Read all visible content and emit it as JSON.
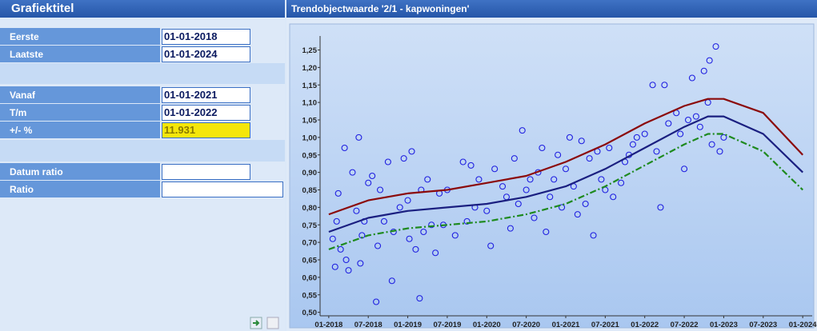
{
  "form": {
    "title": "Grafiektitel",
    "fields": [
      {
        "label": "Eerste",
        "value": "01-01-2018"
      },
      {
        "label": "Laatste",
        "value": "01-01-2024"
      },
      {
        "label": "Vanaf",
        "value": "01-01-2021"
      },
      {
        "label": "T/m",
        "value": "01-01-2022"
      },
      {
        "label": "+/- %",
        "value": "11.931"
      },
      {
        "label": "Datum ratio"
      },
      {
        "label": "Ratio"
      }
    ]
  },
  "chart_data": {
    "type": "scatter",
    "title": "Trendobjectwaarde '2/1 - kapwoningen'",
    "xlim": [
      2017.89,
      2024.12
    ],
    "ylim": [
      0.49,
      1.29
    ],
    "xticks": [
      {
        "value": 2018,
        "label": "01-2018"
      },
      {
        "value": 2018.5,
        "label": "07-2018"
      },
      {
        "value": 2019,
        "label": "01-2019"
      },
      {
        "value": 2019.5,
        "label": "07-2019"
      },
      {
        "value": 2020,
        "label": "01-2020"
      },
      {
        "value": 2020.5,
        "label": "07-2020"
      },
      {
        "value": 2021,
        "label": "01-2021"
      },
      {
        "value": 2021.5,
        "label": "07-2021"
      },
      {
        "value": 2022,
        "label": "01-2022"
      },
      {
        "value": 2022.5,
        "label": "07-2022"
      },
      {
        "value": 2023,
        "label": "01-2023"
      },
      {
        "value": 2023.5,
        "label": "07-2023"
      },
      {
        "value": 2024,
        "label": "01-2024"
      }
    ],
    "yticks": [
      {
        "value": 0.5,
        "label": "0,50"
      },
      {
        "value": 0.55,
        "label": "0,55"
      },
      {
        "value": 0.6,
        "label": "0,60"
      },
      {
        "value": 0.65,
        "label": "0,65"
      },
      {
        "value": 0.7,
        "label": "0,70"
      },
      {
        "value": 0.75,
        "label": "0,75"
      },
      {
        "value": 0.8,
        "label": "0,80"
      },
      {
        "value": 0.85,
        "label": "0,85"
      },
      {
        "value": 0.9,
        "label": "0,90"
      },
      {
        "value": 0.95,
        "label": "0,95"
      },
      {
        "value": 1.0,
        "label": "1,00"
      },
      {
        "value": 1.05,
        "label": "1,05"
      },
      {
        "value": 1.1,
        "label": "1,10"
      },
      {
        "value": 1.15,
        "label": "1,15"
      },
      {
        "value": 1.2,
        "label": "1,20"
      },
      {
        "value": 1.25,
        "label": "1,25"
      }
    ],
    "series": [
      {
        "type": "scatter",
        "color": "#1f1fe0",
        "x": [
          2018.05,
          2018.08,
          2018.1,
          2018.12,
          2018.15,
          2018.2,
          2018.22,
          2018.25,
          2018.3,
          2018.35,
          2018.38,
          2018.4,
          2018.42,
          2018.45,
          2018.5,
          2018.55,
          2018.6,
          2018.62,
          2018.65,
          2018.7,
          2018.75,
          2018.8,
          2018.82,
          2018.9,
          2018.95,
          2019.0,
          2019.02,
          2019.05,
          2019.1,
          2019.15,
          2019.17,
          2019.2,
          2019.25,
          2019.3,
          2019.35,
          2019.4,
          2019.45,
          2019.5,
          2019.6,
          2019.7,
          2019.75,
          2019.8,
          2019.85,
          2019.9,
          2020.0,
          2020.05,
          2020.1,
          2020.2,
          2020.25,
          2020.3,
          2020.35,
          2020.4,
          2020.45,
          2020.5,
          2020.55,
          2020.6,
          2020.65,
          2020.7,
          2020.75,
          2020.8,
          2020.85,
          2020.9,
          2020.95,
          2021.0,
          2021.05,
          2021.1,
          2021.15,
          2021.2,
          2021.25,
          2021.3,
          2021.35,
          2021.4,
          2021.45,
          2021.5,
          2021.55,
          2021.6,
          2021.7,
          2021.75,
          2021.8,
          2021.85,
          2021.9,
          2022.0,
          2022.1,
          2022.15,
          2022.2,
          2022.25,
          2022.3,
          2022.4,
          2022.45,
          2022.5,
          2022.55,
          2022.6,
          2022.65,
          2022.7,
          2022.75,
          2022.8,
          2022.82,
          2022.85,
          2022.9,
          2022.95,
          2023.0
        ],
        "values": [
          0.71,
          0.63,
          0.76,
          0.84,
          0.68,
          0.97,
          0.65,
          0.62,
          0.9,
          0.79,
          1.0,
          0.64,
          0.72,
          0.76,
          0.87,
          0.89,
          0.53,
          0.69,
          0.85,
          0.76,
          0.93,
          0.59,
          0.73,
          0.8,
          0.94,
          0.82,
          0.71,
          0.96,
          0.68,
          0.54,
          0.85,
          0.73,
          0.88,
          0.75,
          0.67,
          0.84,
          0.75,
          0.85,
          0.72,
          0.93,
          0.76,
          0.92,
          0.8,
          0.88,
          0.79,
          0.69,
          0.91,
          0.86,
          0.83,
          0.74,
          0.94,
          0.81,
          1.02,
          0.85,
          0.88,
          0.77,
          0.9,
          0.97,
          0.73,
          0.83,
          0.88,
          0.95,
          0.8,
          0.91,
          1.0,
          0.86,
          0.78,
          0.99,
          0.81,
          0.94,
          0.72,
          0.96,
          0.88,
          0.85,
          0.97,
          0.83,
          0.87,
          0.93,
          0.95,
          0.98,
          1.0,
          1.01,
          1.15,
          0.96,
          0.8,
          1.15,
          1.04,
          1.07,
          1.01,
          0.91,
          1.05,
          1.17,
          1.06,
          1.03,
          1.19,
          1.1,
          1.22,
          0.98,
          1.26,
          0.96,
          1.0
        ]
      },
      {
        "type": "line",
        "color": "#8b0a0a",
        "x": [
          2018,
          2018.5,
          2019,
          2019.5,
          2020,
          2020.5,
          2021,
          2021.5,
          2022,
          2022.5,
          2022.8,
          2023,
          2023.5,
          2024
        ],
        "values": [
          0.78,
          0.82,
          0.84,
          0.85,
          0.87,
          0.89,
          0.93,
          0.98,
          1.04,
          1.09,
          1.11,
          1.11,
          1.07,
          0.95
        ]
      },
      {
        "type": "line",
        "color": "#1a1f80",
        "x": [
          2018,
          2018.5,
          2019,
          2019.5,
          2020,
          2020.5,
          2021,
          2021.5,
          2022,
          2022.5,
          2022.8,
          2023,
          2023.5,
          2024
        ],
        "values": [
          0.73,
          0.77,
          0.79,
          0.8,
          0.81,
          0.83,
          0.86,
          0.91,
          0.97,
          1.03,
          1.06,
          1.06,
          1.01,
          0.9
        ]
      },
      {
        "type": "line",
        "color": "#1e8a1e",
        "line_style": "dashdot",
        "x": [
          2018,
          2018.5,
          2019,
          2019.5,
          2020,
          2020.5,
          2021,
          2021.5,
          2022,
          2022.5,
          2022.8,
          2023,
          2023.5,
          2024
        ],
        "values": [
          0.68,
          0.72,
          0.74,
          0.75,
          0.76,
          0.78,
          0.81,
          0.86,
          0.92,
          0.98,
          1.01,
          1.01,
          0.96,
          0.85
        ]
      }
    ]
  }
}
